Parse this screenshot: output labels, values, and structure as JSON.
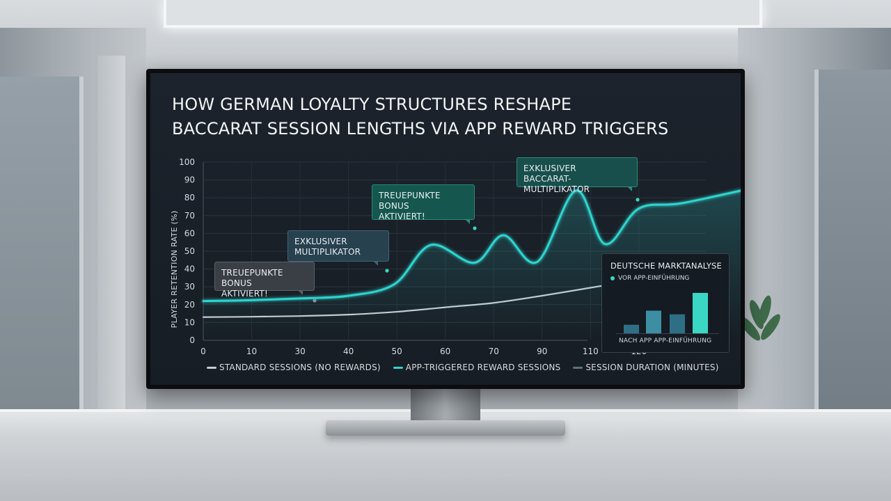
{
  "screen": {
    "title_line1": "HOW GERMAN LOYALTY STRUCTURES RESHAPE",
    "title_line2": "BACCARAT SESSION LENGTHS VIA APP REWARD TRIGGERS"
  },
  "chart_data": {
    "type": "line",
    "title": "HOW GERMAN LOYALTY STRUCTURES RESHAPE BACCARAT SESSION LENGTHS VIA APP REWARD TRIGGERS",
    "ylabel": "PLAYER RETENTION RATE (%)",
    "xlabel": "",
    "x_ticks": [
      "0",
      "10",
      "30",
      "40",
      "50",
      "60",
      "70",
      "90",
      "110",
      "120"
    ],
    "y_ticks": [
      "0",
      "10",
      "20",
      "30",
      "40",
      "50",
      "60",
      "70",
      "80",
      "90",
      "100"
    ],
    "ylim": [
      0,
      100
    ],
    "grid": true,
    "legend_position": "bottom",
    "series": [
      {
        "name": "STANDARD SESSIONS (NO REWARDS)",
        "color": "#c5ccd2",
        "points": [
          [
            0,
            13
          ],
          [
            1,
            13.2
          ],
          [
            2,
            13.6
          ],
          [
            3,
            14.4
          ],
          [
            4,
            16
          ],
          [
            5,
            18.5
          ],
          [
            6,
            21
          ],
          [
            7,
            25
          ],
          [
            8,
            29.5
          ],
          [
            9,
            34
          ],
          [
            9.9,
            38
          ]
        ]
      },
      {
        "name": "APP-TRIGGERED REWARD SESSIONS",
        "color": "#2fd4cf",
        "points": [
          [
            0,
            22
          ],
          [
            1,
            22.5
          ],
          [
            2,
            23.5
          ],
          [
            3,
            25
          ],
          [
            3.95,
            31.5
          ],
          [
            4.7,
            53.5
          ],
          [
            5.6,
            43.5
          ],
          [
            6.2,
            59
          ],
          [
            6.9,
            44
          ],
          [
            7.7,
            84
          ],
          [
            8.3,
            54
          ],
          [
            9,
            74
          ],
          [
            9.9,
            77
          ],
          [
            11.6,
            87
          ]
        ]
      },
      {
        "name": "SESSION DURATION (MINUTES)",
        "color": "#5c7384",
        "points": []
      }
    ],
    "annotations": [
      {
        "text_line1": "TREUEPUNKTE BONUS",
        "text_line2": "AKTIVIERT!"
      },
      {
        "text_line1": "EXKLUSIVER",
        "text_line2": "MULTIPLIKATOR"
      },
      {
        "text_line1": "TREUEPUNKTE BONUS",
        "text_line2": "AKTIVIERT!"
      },
      {
        "text_line1": "EXKLUSIVER",
        "text_line2": "BACCARAT-MULTIPLIKATOR"
      }
    ],
    "inset": {
      "type": "bar",
      "title": "DEUTSCHE MARKTANALYSE",
      "legend": "VOR APP-EINFÜHRUNG",
      "footer": "NACH APP APP-EINFÜHRUNG",
      "values": [
        14,
        37,
        31,
        66
      ],
      "colors": [
        "#2f6f86",
        "#3d8ea3",
        "#2f6f86",
        "#3ad8c3"
      ]
    }
  },
  "colors": {
    "accent_teal": "#2fd4cf",
    "screen_bg": "#1a2028"
  }
}
